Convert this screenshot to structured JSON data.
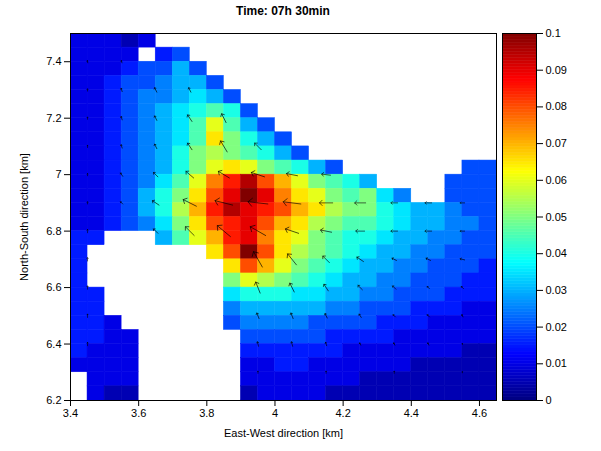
{
  "chart_data": {
    "type": "heatmap",
    "title": "Time: 07h 30min",
    "x_label": "East-West direction [km]",
    "y_label": "North-South direction [km]",
    "xlim": [
      3.4,
      4.65
    ],
    "xticks": [
      3.4,
      3.6,
      3.8,
      4,
      4.2,
      4.4,
      4.6
    ],
    "ylim": [
      6.2,
      7.5
    ],
    "yticks": [
      6.2,
      6.4,
      6.6,
      6.8,
      7,
      7.2,
      7.4
    ],
    "x": [
      3.425,
      3.475,
      3.525,
      3.575,
      3.625,
      3.675,
      3.725,
      3.775,
      3.825,
      3.875,
      3.925,
      3.975,
      4.025,
      4.075,
      4.125,
      4.175,
      4.225,
      4.275,
      4.325,
      4.375,
      4.425,
      4.475,
      4.525,
      4.575,
      4.625
    ],
    "y": [
      7.475,
      7.425,
      7.375,
      7.325,
      7.275,
      7.225,
      7.175,
      7.125,
      7.075,
      7.025,
      6.975,
      6.925,
      6.875,
      6.825,
      6.775,
      6.725,
      6.675,
      6.625,
      6.575,
      6.525,
      6.475,
      6.425,
      6.375,
      6.325,
      6.275,
      6.225
    ],
    "z": [
      [
        0.01,
        0.01,
        0.01,
        0.005,
        0.01,
        null,
        null,
        null,
        null,
        null,
        null,
        null,
        null,
        null,
        null,
        null,
        null,
        null,
        null,
        null,
        null,
        null,
        null,
        null,
        null
      ],
      [
        0.01,
        0.01,
        0.01,
        0.01,
        null,
        0.015,
        0.02,
        null,
        null,
        null,
        null,
        null,
        null,
        null,
        null,
        null,
        null,
        null,
        null,
        null,
        null,
        null,
        null,
        null,
        null
      ],
      [
        0.01,
        0.01,
        0.01,
        0.015,
        0.02,
        0.02,
        0.03,
        0.02,
        null,
        null,
        null,
        null,
        null,
        null,
        null,
        null,
        null,
        null,
        null,
        null,
        null,
        null,
        null,
        null,
        null
      ],
      [
        0.01,
        0.01,
        0.015,
        0.02,
        0.02,
        0.025,
        0.03,
        0.03,
        0.02,
        null,
        null,
        null,
        null,
        null,
        null,
        null,
        null,
        null,
        null,
        null,
        null,
        null,
        null,
        null,
        null
      ],
      [
        0.01,
        0.01,
        0.015,
        0.02,
        0.025,
        0.025,
        0.03,
        0.035,
        0.03,
        0.02,
        null,
        null,
        null,
        null,
        null,
        null,
        null,
        null,
        null,
        null,
        null,
        null,
        null,
        null,
        null
      ],
      [
        0.01,
        0.01,
        0.015,
        0.02,
        0.025,
        0.03,
        0.035,
        0.04,
        0.045,
        0.04,
        0.02,
        null,
        null,
        null,
        null,
        null,
        null,
        null,
        null,
        null,
        null,
        null,
        null,
        null,
        null
      ],
      [
        0.01,
        0.01,
        0.015,
        0.02,
        0.025,
        0.03,
        0.035,
        0.045,
        0.06,
        0.045,
        0.03,
        0.02,
        null,
        null,
        null,
        null,
        null,
        null,
        null,
        null,
        null,
        null,
        null,
        null,
        null
      ],
      [
        0.01,
        0.01,
        0.015,
        0.02,
        0.025,
        0.03,
        0.035,
        0.045,
        0.065,
        0.05,
        0.04,
        0.03,
        0.02,
        null,
        null,
        null,
        null,
        null,
        null,
        null,
        null,
        null,
        null,
        null,
        null
      ],
      [
        0.01,
        0.01,
        0.015,
        0.02,
        0.025,
        0.03,
        0.04,
        0.05,
        0.055,
        0.05,
        0.045,
        0.04,
        0.03,
        0.02,
        null,
        null,
        null,
        null,
        null,
        null,
        null,
        null,
        null,
        null,
        null
      ],
      [
        0.01,
        0.01,
        0.015,
        0.02,
        0.025,
        0.03,
        0.04,
        0.05,
        0.06,
        0.065,
        0.06,
        0.05,
        0.045,
        0.04,
        0.03,
        0.02,
        null,
        null,
        null,
        null,
        null,
        null,
        null,
        0.02,
        0.02
      ],
      [
        0.01,
        0.01,
        0.015,
        0.02,
        0.025,
        0.035,
        0.045,
        0.06,
        0.075,
        0.085,
        0.095,
        0.08,
        0.07,
        0.06,
        0.05,
        0.045,
        0.04,
        0.03,
        null,
        null,
        null,
        null,
        0.02,
        0.02,
        0.02
      ],
      [
        0.01,
        0.01,
        0.015,
        0.02,
        0.03,
        0.04,
        0.05,
        0.065,
        0.08,
        0.09,
        0.1,
        0.09,
        0.075,
        0.065,
        0.06,
        0.05,
        0.045,
        0.05,
        0.035,
        0.025,
        null,
        null,
        0.02,
        0.02,
        0.02
      ],
      [
        0.01,
        0.01,
        0.015,
        0.02,
        0.03,
        0.04,
        0.055,
        0.07,
        0.085,
        0.095,
        0.09,
        0.085,
        0.08,
        0.07,
        0.065,
        0.055,
        0.05,
        0.05,
        0.04,
        0.035,
        0.03,
        0.03,
        0.025,
        0.02,
        0.02
      ],
      [
        0.01,
        0.01,
        0.015,
        0.02,
        0.025,
        0.035,
        0.05,
        0.065,
        0.08,
        0.085,
        0.09,
        0.08,
        0.07,
        0.065,
        0.055,
        0.05,
        0.045,
        0.045,
        0.04,
        0.035,
        0.03,
        0.03,
        0.025,
        0.025,
        0.02
      ],
      [
        0.015,
        0.015,
        null,
        null,
        null,
        0.03,
        0.045,
        0.06,
        0.07,
        0.085,
        0.09,
        0.075,
        0.065,
        0.06,
        0.05,
        0.045,
        0.04,
        0.04,
        0.035,
        0.03,
        0.03,
        0.025,
        0.025,
        0.02,
        0.02
      ],
      [
        0.015,
        null,
        null,
        null,
        null,
        null,
        null,
        null,
        0.065,
        0.08,
        0.1,
        0.08,
        0.065,
        0.055,
        0.05,
        0.045,
        0.04,
        0.035,
        0.03,
        0.03,
        0.025,
        0.025,
        0.02,
        0.02,
        0.02
      ],
      [
        0.015,
        null,
        null,
        null,
        null,
        null,
        null,
        null,
        null,
        0.065,
        0.08,
        0.07,
        0.06,
        0.05,
        0.045,
        0.04,
        0.035,
        0.03,
        0.03,
        0.025,
        0.025,
        0.02,
        0.02,
        0.02,
        0.015
      ],
      [
        0.015,
        null,
        null,
        null,
        null,
        null,
        null,
        null,
        null,
        0.05,
        0.06,
        0.055,
        0.05,
        0.045,
        0.04,
        0.035,
        0.03,
        0.03,
        0.025,
        0.025,
        0.02,
        0.02,
        0.02,
        0.015,
        0.015
      ],
      [
        0.015,
        0.015,
        null,
        null,
        null,
        null,
        null,
        null,
        null,
        0.035,
        0.04,
        0.04,
        0.04,
        0.035,
        0.035,
        0.03,
        0.03,
        0.025,
        0.025,
        0.02,
        0.02,
        0.02,
        0.015,
        0.015,
        0.015
      ],
      [
        0.015,
        0.015,
        null,
        null,
        null,
        null,
        null,
        null,
        null,
        0.025,
        0.03,
        0.03,
        0.03,
        0.03,
        0.03,
        0.025,
        0.025,
        0.02,
        0.02,
        0.02,
        0.015,
        0.015,
        0.015,
        0.01,
        0.01
      ],
      [
        0.015,
        0.015,
        0.01,
        null,
        null,
        null,
        null,
        null,
        null,
        0.02,
        0.025,
        0.025,
        0.025,
        0.025,
        0.02,
        0.02,
        0.02,
        0.02,
        0.015,
        0.015,
        0.015,
        0.01,
        0.01,
        0.01,
        0.01
      ],
      [
        0.015,
        0.015,
        0.01,
        0.01,
        null,
        null,
        null,
        null,
        null,
        null,
        0.02,
        0.02,
        0.02,
        0.02,
        0.02,
        0.015,
        0.015,
        0.015,
        0.015,
        0.01,
        0.01,
        0.01,
        0.01,
        0.01,
        0.01
      ],
      [
        0.015,
        0.01,
        0.01,
        0.01,
        null,
        null,
        null,
        null,
        null,
        null,
        0.015,
        0.015,
        0.015,
        0.015,
        0.015,
        0.015,
        0.01,
        0.01,
        0.01,
        0.01,
        0.01,
        0.01,
        0.01,
        0.005,
        0.005
      ],
      [
        0.01,
        0.01,
        0.01,
        0.01,
        null,
        null,
        null,
        null,
        null,
        null,
        0.01,
        0.01,
        0.015,
        0.015,
        0.01,
        0.01,
        0.01,
        0.01,
        0.01,
        0.01,
        0.005,
        0.005,
        0.005,
        0.005,
        0.005
      ],
      [
        null,
        0.01,
        0.01,
        0.01,
        null,
        null,
        null,
        null,
        null,
        null,
        0.01,
        0.01,
        0.01,
        0.01,
        0.01,
        0.01,
        0.01,
        0.005,
        0.005,
        0.005,
        0.005,
        0.005,
        0.005,
        0.005,
        0.005
      ],
      [
        null,
        0.01,
        0.005,
        0.005,
        null,
        null,
        null,
        null,
        null,
        null,
        0.005,
        0.01,
        0.01,
        0.01,
        0.01,
        0.005,
        0.005,
        0.005,
        0.005,
        0.005,
        0.005,
        0.005,
        0.005,
        0.005,
        0.005
      ]
    ],
    "colorbar": {
      "range": [
        0,
        0.1
      ],
      "ticks": [
        0,
        0.01,
        0.02,
        0.03,
        0.04,
        0.05,
        0.06,
        0.07,
        0.08,
        0.09,
        0.1
      ]
    },
    "arrows": [
      {
        "x": 3.45,
        "y": 7.4,
        "u": -0.002,
        "v": 0.01
      },
      {
        "x": 3.55,
        "y": 7.4,
        "u": -0.003,
        "v": 0.01
      },
      {
        "x": 3.45,
        "y": 7.3,
        "u": 0,
        "v": 0.01
      },
      {
        "x": 3.55,
        "y": 7.3,
        "u": -0.005,
        "v": 0.015
      },
      {
        "x": 3.65,
        "y": 7.3,
        "u": -0.01,
        "v": 0.02
      },
      {
        "x": 3.75,
        "y": 7.3,
        "u": -0.01,
        "v": 0.02
      },
      {
        "x": 3.45,
        "y": 7.2,
        "u": 0,
        "v": 0.01
      },
      {
        "x": 3.55,
        "y": 7.2,
        "u": -0.005,
        "v": 0.015
      },
      {
        "x": 3.65,
        "y": 7.2,
        "u": -0.01,
        "v": 0.02
      },
      {
        "x": 3.75,
        "y": 7.2,
        "u": -0.02,
        "v": 0.03
      },
      {
        "x": 3.85,
        "y": 7.2,
        "u": -0.02,
        "v": 0.04
      },
      {
        "x": 3.45,
        "y": 7.1,
        "u": 0,
        "v": 0.01
      },
      {
        "x": 3.55,
        "y": 7.1,
        "u": -0.005,
        "v": 0.015
      },
      {
        "x": 3.65,
        "y": 7.1,
        "u": -0.01,
        "v": 0.02
      },
      {
        "x": 3.75,
        "y": 7.1,
        "u": -0.02,
        "v": 0.03
      },
      {
        "x": 3.85,
        "y": 7.1,
        "u": -0.03,
        "v": 0.05
      },
      {
        "x": 3.95,
        "y": 7.1,
        "u": -0.03,
        "v": 0.03
      },
      {
        "x": 3.45,
        "y": 7.0,
        "u": 0,
        "v": 0.01
      },
      {
        "x": 3.55,
        "y": 7.0,
        "u": -0.01,
        "v": 0.015
      },
      {
        "x": 3.65,
        "y": 7.0,
        "u": -0.02,
        "v": 0.02
      },
      {
        "x": 3.75,
        "y": 7.0,
        "u": -0.035,
        "v": 0.03
      },
      {
        "x": 3.85,
        "y": 7.0,
        "u": -0.05,
        "v": 0.03
      },
      {
        "x": 3.95,
        "y": 7.0,
        "u": -0.06,
        "v": 0.02
      },
      {
        "x": 4.05,
        "y": 7.0,
        "u": -0.05,
        "v": 0.01
      },
      {
        "x": 4.15,
        "y": 7.0,
        "u": -0.04,
        "v": 0.005
      },
      {
        "x": 3.45,
        "y": 6.9,
        "u": 0,
        "v": 0.01
      },
      {
        "x": 3.55,
        "y": 6.9,
        "u": -0.01,
        "v": 0.01
      },
      {
        "x": 3.65,
        "y": 6.9,
        "u": -0.03,
        "v": 0.02
      },
      {
        "x": 3.75,
        "y": 6.9,
        "u": -0.06,
        "v": 0.03
      },
      {
        "x": 3.85,
        "y": 6.9,
        "u": -0.08,
        "v": 0.02
      },
      {
        "x": 3.95,
        "y": 6.9,
        "u": -0.09,
        "v": 0.01
      },
      {
        "x": 4.05,
        "y": 6.9,
        "u": -0.08,
        "v": 0.01
      },
      {
        "x": 4.15,
        "y": 6.9,
        "u": -0.06,
        "v": 0
      },
      {
        "x": 4.25,
        "y": 6.9,
        "u": -0.05,
        "v": 0
      },
      {
        "x": 4.35,
        "y": 6.9,
        "u": -0.03,
        "v": 0
      },
      {
        "x": 4.45,
        "y": 6.9,
        "u": -0.03,
        "v": 0
      },
      {
        "x": 4.55,
        "y": 6.9,
        "u": -0.02,
        "v": 0
      },
      {
        "x": 3.45,
        "y": 6.8,
        "u": 0,
        "v": 0.015
      },
      {
        "x": 3.65,
        "y": 6.8,
        "u": -0.02,
        "v": 0.02
      },
      {
        "x": 3.75,
        "y": 6.8,
        "u": -0.04,
        "v": 0.04
      },
      {
        "x": 3.85,
        "y": 6.8,
        "u": -0.06,
        "v": 0.05
      },
      {
        "x": 3.95,
        "y": 6.8,
        "u": -0.07,
        "v": 0.04
      },
      {
        "x": 4.05,
        "y": 6.8,
        "u": -0.06,
        "v": 0.02
      },
      {
        "x": 4.15,
        "y": 6.8,
        "u": -0.05,
        "v": 0.01
      },
      {
        "x": 4.25,
        "y": 6.8,
        "u": -0.04,
        "v": 0
      },
      {
        "x": 4.35,
        "y": 6.8,
        "u": -0.03,
        "v": 0
      },
      {
        "x": 4.45,
        "y": 6.8,
        "u": -0.03,
        "v": 0
      },
      {
        "x": 4.55,
        "y": 6.8,
        "u": -0.02,
        "v": 0
      },
      {
        "x": 3.45,
        "y": 6.7,
        "u": 0,
        "v": 0.015
      },
      {
        "x": 3.95,
        "y": 6.7,
        "u": -0.04,
        "v": 0.07
      },
      {
        "x": 4.05,
        "y": 6.7,
        "u": -0.04,
        "v": 0.05
      },
      {
        "x": 4.15,
        "y": 6.7,
        "u": -0.03,
        "v": 0.03
      },
      {
        "x": 4.25,
        "y": 6.7,
        "u": -0.03,
        "v": 0.02
      },
      {
        "x": 4.35,
        "y": 6.7,
        "u": -0.02,
        "v": 0.01
      },
      {
        "x": 4.45,
        "y": 6.7,
        "u": -0.02,
        "v": 0.01
      },
      {
        "x": 4.55,
        "y": 6.7,
        "u": -0.02,
        "v": 0.005
      },
      {
        "x": 3.45,
        "y": 6.6,
        "u": 0,
        "v": 0.015
      },
      {
        "x": 3.95,
        "y": 6.6,
        "u": -0.02,
        "v": 0.05
      },
      {
        "x": 4.05,
        "y": 6.6,
        "u": -0.02,
        "v": 0.04
      },
      {
        "x": 4.15,
        "y": 6.6,
        "u": -0.02,
        "v": 0.03
      },
      {
        "x": 4.25,
        "y": 6.6,
        "u": -0.02,
        "v": 0.02
      },
      {
        "x": 4.35,
        "y": 6.6,
        "u": -0.015,
        "v": 0.015
      },
      {
        "x": 4.45,
        "y": 6.6,
        "u": -0.01,
        "v": 0.01
      },
      {
        "x": 4.55,
        "y": 6.6,
        "u": -0.01,
        "v": 0.01
      },
      {
        "x": 3.45,
        "y": 6.5,
        "u": 0,
        "v": 0.015
      },
      {
        "x": 3.95,
        "y": 6.5,
        "u": -0.01,
        "v": 0.025
      },
      {
        "x": 4.05,
        "y": 6.5,
        "u": -0.01,
        "v": 0.025
      },
      {
        "x": 4.15,
        "y": 6.5,
        "u": -0.01,
        "v": 0.02
      },
      {
        "x": 4.25,
        "y": 6.5,
        "u": -0.01,
        "v": 0.015
      },
      {
        "x": 4.35,
        "y": 6.5,
        "u": -0.01,
        "v": 0.01
      },
      {
        "x": 4.45,
        "y": 6.5,
        "u": -0.01,
        "v": 0.01
      },
      {
        "x": 4.55,
        "y": 6.5,
        "u": -0.005,
        "v": 0.01
      },
      {
        "x": 3.45,
        "y": 6.4,
        "u": 0,
        "v": 0.015
      },
      {
        "x": 3.95,
        "y": 6.4,
        "u": -0.005,
        "v": 0.02
      },
      {
        "x": 4.05,
        "y": 6.4,
        "u": -0.005,
        "v": 0.02
      },
      {
        "x": 4.15,
        "y": 6.4,
        "u": -0.005,
        "v": 0.015
      },
      {
        "x": 4.25,
        "y": 6.4,
        "u": -0.005,
        "v": 0.01
      },
      {
        "x": 4.35,
        "y": 6.4,
        "u": -0.005,
        "v": 0.01
      },
      {
        "x": 4.45,
        "y": 6.4,
        "u": -0.005,
        "v": 0.01
      },
      {
        "x": 4.55,
        "y": 6.4,
        "u": 0,
        "v": 0.005
      },
      {
        "x": 3.95,
        "y": 6.3,
        "u": 0,
        "v": 0.01
      },
      {
        "x": 4.15,
        "y": 6.3,
        "u": 0,
        "v": 0.01
      },
      {
        "x": 4.35,
        "y": 6.3,
        "u": 0,
        "v": 0.01
      },
      {
        "x": 4.55,
        "y": 6.3,
        "u": 0,
        "v": 0.005
      }
    ]
  }
}
